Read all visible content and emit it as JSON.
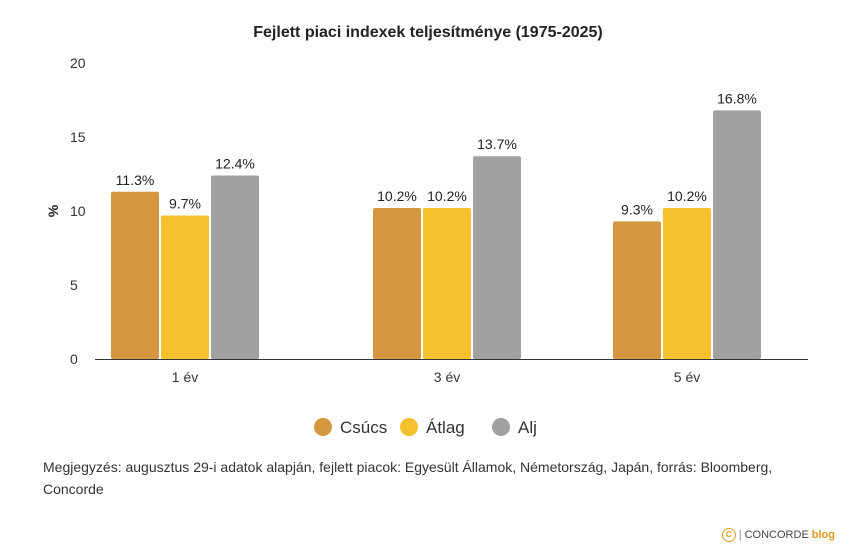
{
  "chart_data": {
    "type": "bar",
    "title": "Fejlett piaci indexek teljesítménye (1975-2025)",
    "xlabel": "",
    "ylabel": "%",
    "categories": [
      "1 év",
      "3 év",
      "5 év"
    ],
    "ylim": [
      0,
      20
    ],
    "yticks": [
      0,
      5,
      10,
      15,
      20
    ],
    "grid": false,
    "legend_position": "bottom",
    "series": [
      {
        "name": "Csúcs",
        "color": "#d4963f",
        "values": [
          11.3,
          10.2,
          9.3
        ],
        "labels": [
          "11.3%",
          "10.2%",
          "9.3%"
        ]
      },
      {
        "name": "Átlag",
        "color": "#f5c02e",
        "values": [
          9.7,
          10.2,
          10.2
        ],
        "labels": [
          "9.7%",
          "10.2%",
          "10.2%"
        ]
      },
      {
        "name": "Alj",
        "color": "#a0a0a0",
        "values": [
          12.4,
          13.7,
          16.8
        ],
        "labels": [
          "12.4%",
          "13.7%",
          "16.8%"
        ]
      }
    ]
  },
  "note": "Megjegyzés: augusztus 29-i adatok alapján, fejlett piacok: Egyesült Államok, Németország, Japán, forrás: Bloomberg, Concorde",
  "brand": {
    "icon": "copyright-c-icon",
    "icon_glyph": "C",
    "separator": "|",
    "name": "CONCORDE",
    "suffix": "blog"
  }
}
